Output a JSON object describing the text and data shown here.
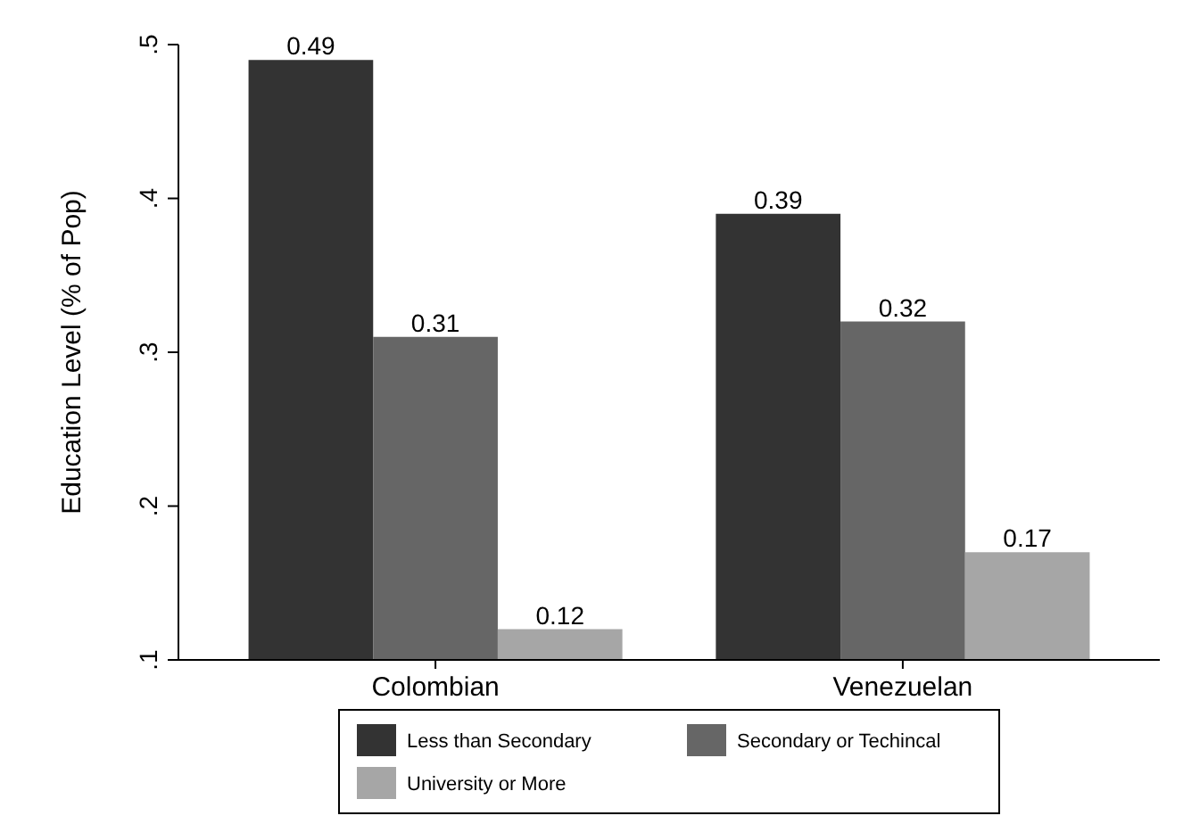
{
  "chart_data": {
    "type": "bar",
    "ylabel": "Education Level (% of Pop)",
    "categories": [
      "Colombian",
      "Venezuelan"
    ],
    "series": [
      {
        "name": "Less than Secondary",
        "color": "#333333",
        "values": [
          0.49,
          0.39
        ]
      },
      {
        "name": "Secondary or Techincal",
        "color": "#666666",
        "values": [
          0.31,
          0.32
        ]
      },
      {
        "name": "University or More",
        "color": "#a6a6a6",
        "values": [
          0.12,
          0.17
        ]
      }
    ],
    "ylim": [
      0.1,
      0.5
    ],
    "yticks": [
      {
        "value": 0.1,
        "label": ".1"
      },
      {
        "value": 0.2,
        "label": ".2"
      },
      {
        "value": 0.3,
        "label": ".3"
      },
      {
        "value": 0.4,
        "label": ".4"
      },
      {
        "value": 0.5,
        "label": ".5"
      }
    ],
    "data_labels": true,
    "grid": false,
    "legend": "bottom"
  }
}
